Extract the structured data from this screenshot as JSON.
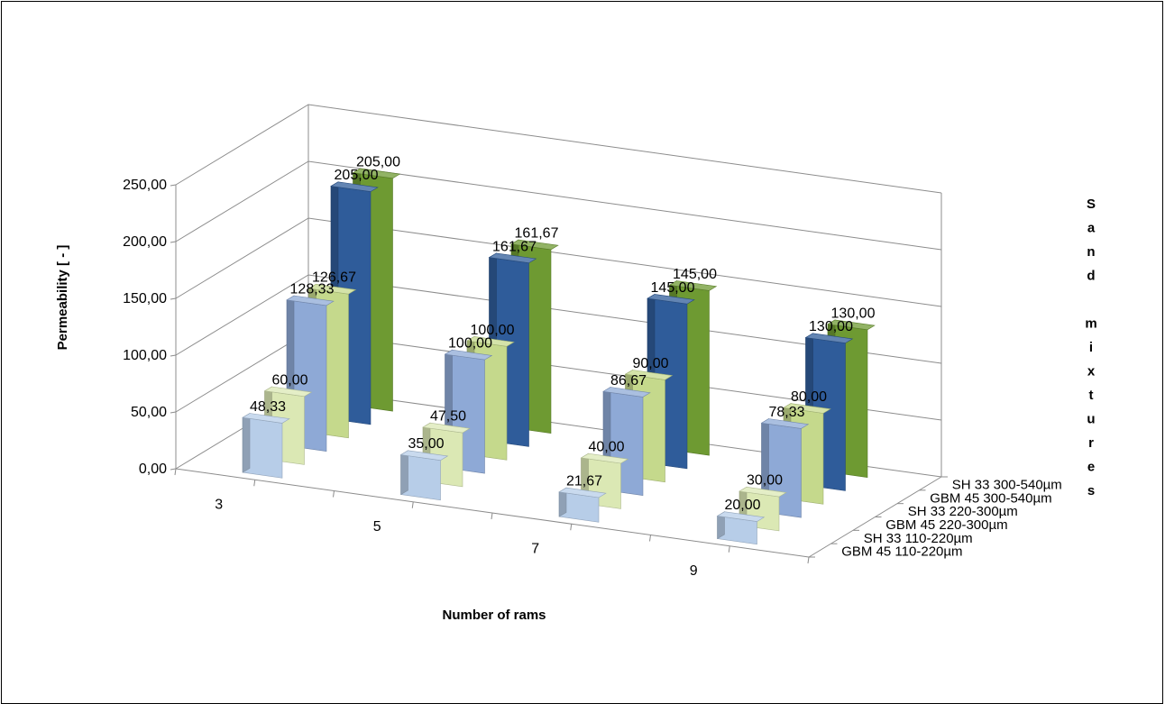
{
  "chart_data": {
    "type": "bar",
    "categories": [
      "3",
      "5",
      "7",
      "9"
    ],
    "xlabel": "Number of rams",
    "ylabel": "Permeability [ - ]",
    "zlabel": "Sand mixtures",
    "ylim": [
      0,
      250
    ],
    "yticks": [
      "0,00",
      "50,00",
      "100,00",
      "150,00",
      "200,00",
      "250,00"
    ],
    "grid": true,
    "series": [
      {
        "name": "GBM 45 110-220µm",
        "values": [
          48.33,
          35.0,
          21.67,
          20.0
        ],
        "labels": [
          "48,33",
          "35,00",
          "21,67",
          "20,00"
        ],
        "color": "#b7cde8"
      },
      {
        "name": "SH 33 110-220µm",
        "values": [
          60.0,
          47.5,
          40.0,
          30.0
        ],
        "labels": [
          "60,00",
          "47,50",
          "40,00",
          "30,00"
        ],
        "color": "#dbe8b4"
      },
      {
        "name": "GBM 45 220-300µm",
        "values": [
          128.33,
          100.0,
          86.67,
          78.33
        ],
        "labels": [
          "128,33",
          "100,00",
          "86,67",
          "78,33"
        ],
        "color": "#8ea9d6"
      },
      {
        "name": "SH 33 220-300µm",
        "values": [
          126.67,
          100.0,
          90.0,
          80.0
        ],
        "labels": [
          "126,67",
          "100,00",
          "90,00",
          "80,00"
        ],
        "color": "#c5d98c"
      },
      {
        "name": "GBM 45 300-540µm",
        "values": [
          205.0,
          161.67,
          145.0,
          130.0
        ],
        "labels": [
          "205,00",
          "161,67",
          "145,00",
          "130,00"
        ],
        "color": "#2f5c9a"
      },
      {
        "name": "SH 33 300-540µm",
        "values": [
          205.0,
          161.67,
          145.0,
          130.0
        ],
        "labels": [
          "205,00",
          "161,67",
          "145,00",
          "130,00"
        ],
        "color": "#6e9a32"
      }
    ]
  }
}
